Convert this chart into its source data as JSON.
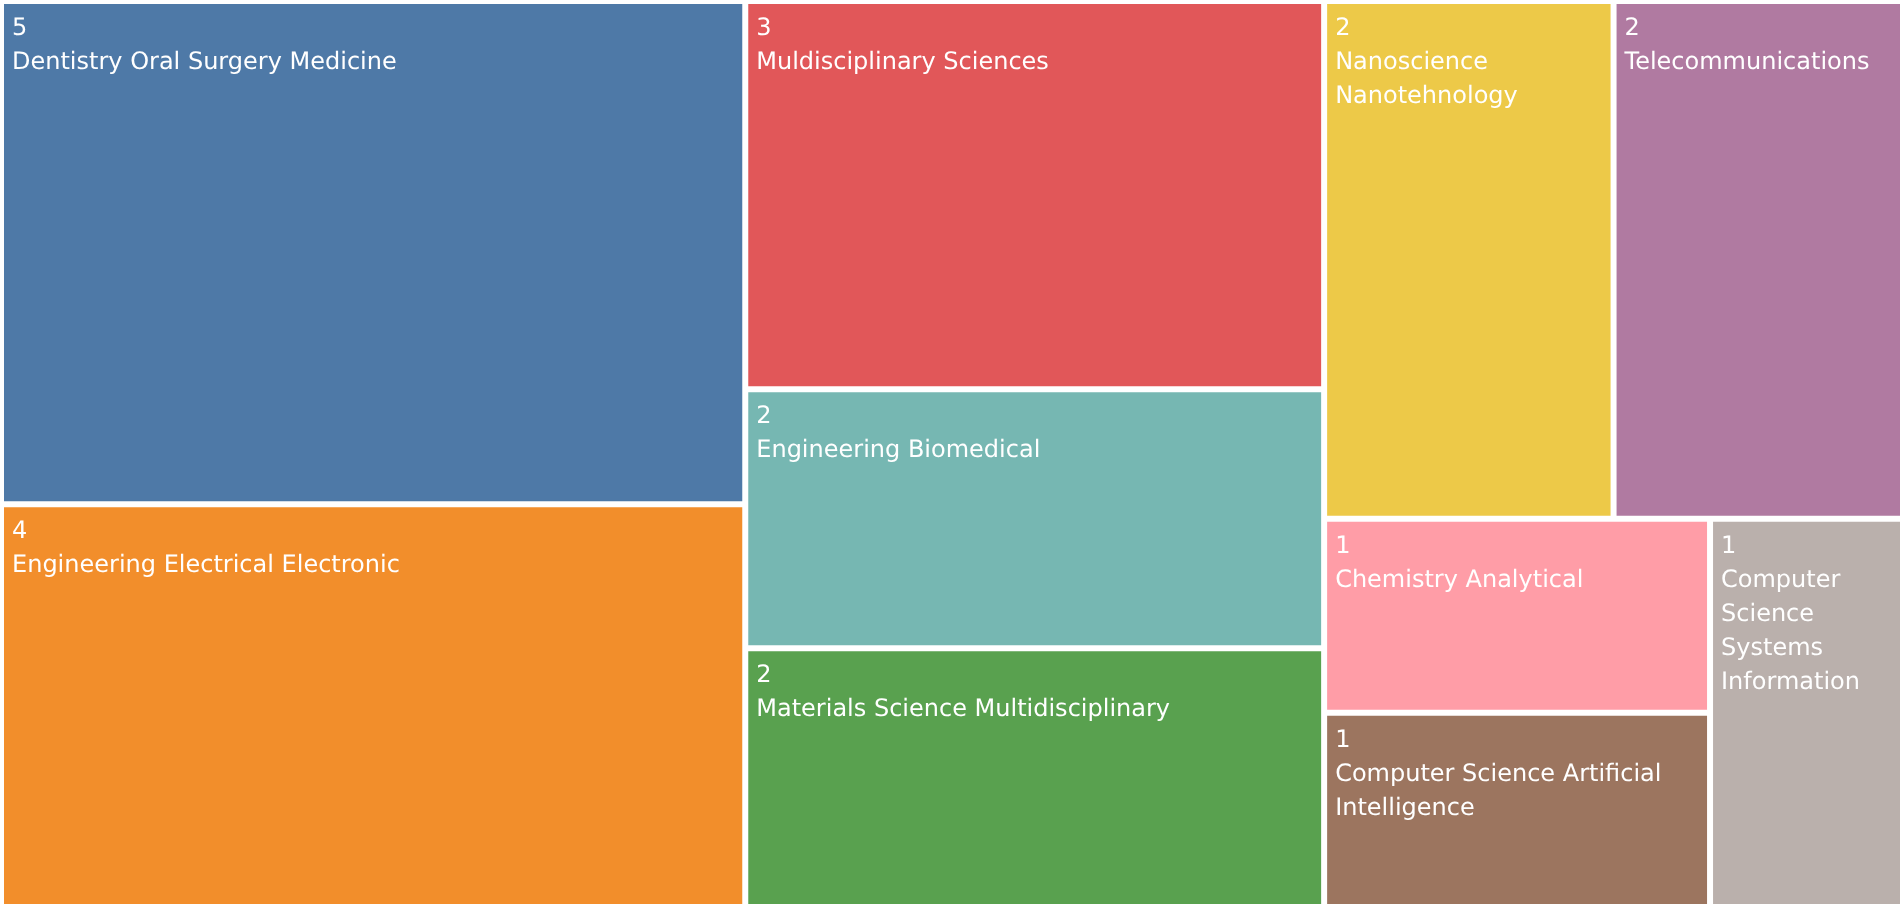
{
  "chart_data": {
    "type": "other",
    "categories": [
      "Dentistry Oral Surgery Medicine",
      "Engineering Electrical Electronic",
      "Muldisciplinary Sciences",
      "Engineering Biomedical",
      "Materials Science Multidisciplinary",
      "Nanoscience Nanotehnology",
      "Telecommunications",
      "Chemistry Analytical",
      "Computer Science Artificial  Intelligence",
      "Computer Science Systems Information"
    ],
    "values": [
      5,
      4,
      3,
      2,
      2,
      2,
      2,
      1,
      1,
      1
    ],
    "colors": [
      "#4e79a7",
      "#f28e2b",
      "#e15759",
      "#76b7b2",
      "#59a14f",
      "#edc948",
      "#b07aa1",
      "#ff9da7",
      "#9c755f",
      "#bab0ac"
    ],
    "data_labels": true
  }
}
